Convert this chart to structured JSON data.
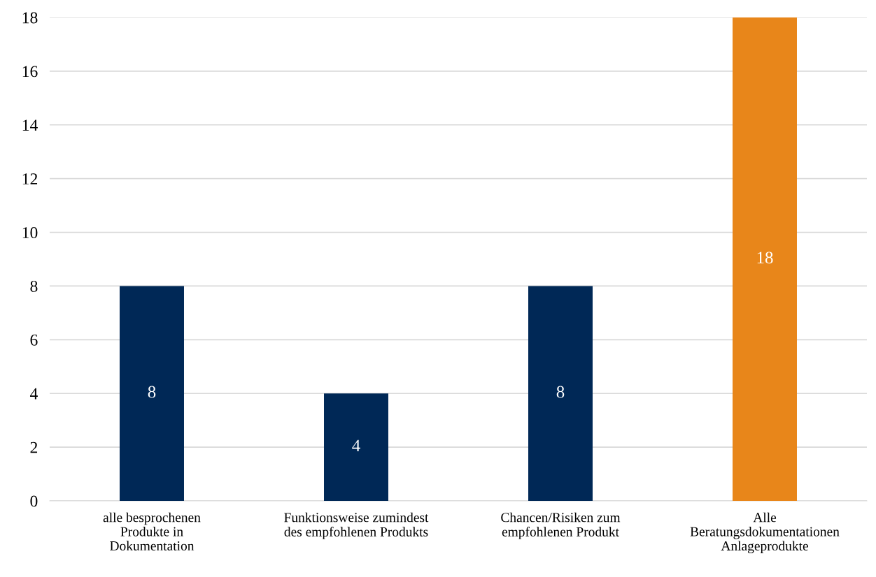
{
  "chart_data": {
    "type": "bar",
    "categories": [
      "alle besprochenen\nProdukte in\nDokumentation",
      "Funktionsweise zumindest\ndes empfohlenen Produkts",
      "Chancen/Risiken zum\nempfohlenen Produkt",
      "Alle\nBeratungsdokumentationen\nAnlageprodukte"
    ],
    "values": [
      8,
      4,
      8,
      18
    ],
    "colors": [
      "#002856",
      "#002856",
      "#002856",
      "#e8861a"
    ],
    "ylim": [
      0,
      18
    ],
    "yticks": [
      0,
      2,
      4,
      6,
      8,
      10,
      12,
      14,
      16,
      18
    ],
    "grid": "y",
    "data_labels": true
  }
}
